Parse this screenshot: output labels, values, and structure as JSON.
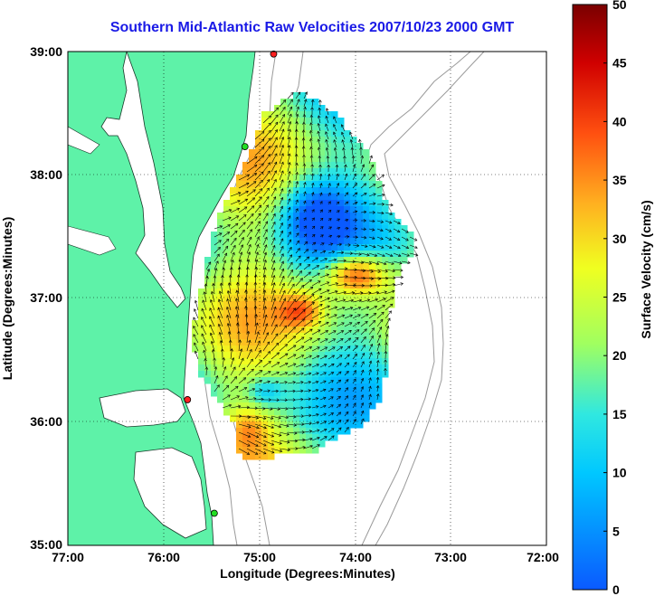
{
  "title": "Southern Mid-Atlantic Raw Velocities 2007/10/23 2000 GMT",
  "map": {
    "x_label": "Longitude (Degrees:Minutes)",
    "y_label": "Latitude (Degrees:Minutes)",
    "x_ticks": [
      "77:00",
      "76:00",
      "75:00",
      "74:00",
      "73:00",
      "72:00"
    ],
    "y_ticks": [
      "39:00",
      "38:00",
      "37:00",
      "36:00",
      "35:00"
    ],
    "lon_range": [
      -77,
      -72
    ],
    "lat_range": [
      35,
      39
    ],
    "land_color": "#5ef2a8",
    "bathymetry_color": "#9a9a9a",
    "grid": "dotted",
    "station_markers": [
      {
        "lon": -74.85,
        "lat": 38.98,
        "color": "#ff2020"
      },
      {
        "lon": -75.15,
        "lat": 38.23,
        "color": "#22dd22"
      },
      {
        "lon": -75.75,
        "lat": 36.18,
        "color": "#ff2020"
      },
      {
        "lon": -75.47,
        "lat": 35.26,
        "color": "#22dd22"
      }
    ]
  },
  "colorbar": {
    "label": "Surface Velocity (cm/s)",
    "min": 0,
    "max": 50,
    "ticks": [
      "0",
      "5",
      "10",
      "15",
      "20",
      "25",
      "30",
      "35",
      "40",
      "45",
      "50"
    ],
    "colormap": "jet"
  }
}
